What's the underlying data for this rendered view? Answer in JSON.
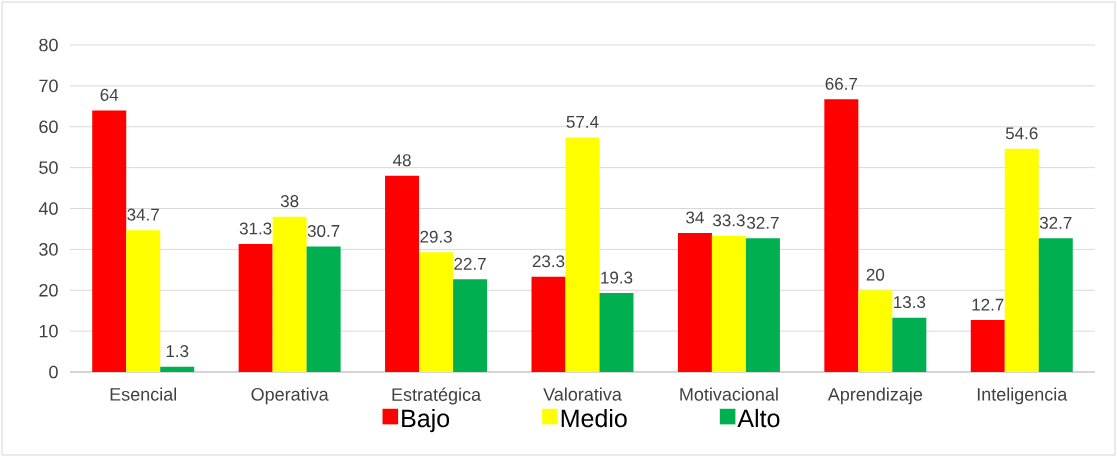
{
  "chart_data": {
    "type": "bar",
    "categories": [
      "Esencial",
      "Operativa",
      "Estratégica",
      "Valorativa",
      "Motivacional",
      "Aprendizaje",
      "Inteligencia"
    ],
    "series": [
      {
        "name": "Bajo",
        "color": "#ff0000",
        "values": [
          64,
          31.3,
          48,
          23.3,
          34,
          66.7,
          12.7
        ]
      },
      {
        "name": "Medio",
        "color": "#ffff00",
        "values": [
          34.7,
          38,
          29.3,
          57.4,
          33.3,
          20,
          54.6
        ]
      },
      {
        "name": "Alto",
        "color": "#00b050",
        "values": [
          1.3,
          30.7,
          22.7,
          19.3,
          32.7,
          13.3,
          32.7
        ]
      }
    ],
    "ylim": [
      0,
      80
    ],
    "yticks": [
      0,
      10,
      20,
      30,
      40,
      50,
      60,
      70,
      80
    ],
    "grid": "y",
    "legend": "bottom",
    "data_labels": true
  }
}
